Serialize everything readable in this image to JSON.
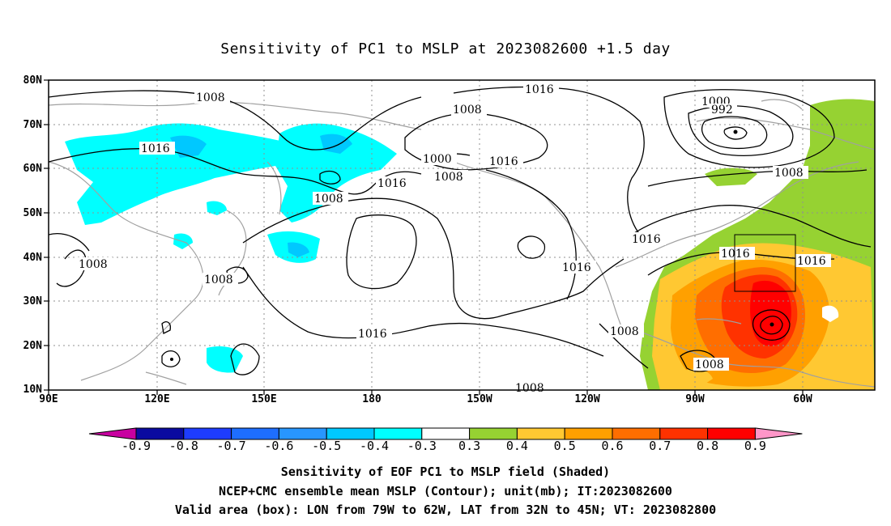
{
  "title": "Sensitivity of PC1 to MSLP at 2023082600 +1.5 day",
  "lat_labels": [
    "80N",
    "70N",
    "60N",
    "50N",
    "40N",
    "30N",
    "20N",
    "10N"
  ],
  "lon_labels": [
    "90E",
    "120E",
    "150E",
    "180",
    "150W",
    "120W",
    "90W",
    "60W"
  ],
  "contour_labels": [
    {
      "text": "1008"
    },
    {
      "text": "1016"
    },
    {
      "text": "1008"
    },
    {
      "text": "1016"
    },
    {
      "text": "1008"
    },
    {
      "text": "1008"
    },
    {
      "text": "1016"
    },
    {
      "text": "1008"
    },
    {
      "text": "1000"
    },
    {
      "text": "1008"
    },
    {
      "text": "1016"
    },
    {
      "text": "1016"
    },
    {
      "text": "1000"
    },
    {
      "text": "992"
    },
    {
      "text": "1008"
    },
    {
      "text": "1016"
    },
    {
      "text": "1016"
    },
    {
      "text": "1016"
    },
    {
      "text": "1016"
    },
    {
      "text": "1008"
    },
    {
      "text": "1008"
    },
    {
      "text": "1008"
    }
  ],
  "colorbar": {
    "labels": [
      "-0.9",
      "-0.8",
      "-0.7",
      "-0.6",
      "-0.5",
      "-0.4",
      "-0.3",
      "0.3",
      "0.4",
      "0.5",
      "0.6",
      "0.7",
      "0.8",
      "0.9"
    ],
    "colors": [
      "#0a0aa0",
      "#1e3cff",
      "#1e6eff",
      "#2896ff",
      "#00c8ff",
      "#00ffff",
      "#ffffff",
      "#96d232",
      "#ffc832",
      "#ffa000",
      "#ff6e00",
      "#ff3200",
      "#ff0000"
    ],
    "low_color": "#c800a0",
    "high_color": "#ff96c8"
  },
  "captions": [
    "Sensitivity of EOF PC1 to MSLP field (Shaded)",
    "NCEP+CMC ensemble mean MSLP (Contour); unit(mb); IT:2023082600",
    "Valid area (box): LON from 79W to 62W, LAT from 32N to 45N; VT: 2023082800"
  ]
}
